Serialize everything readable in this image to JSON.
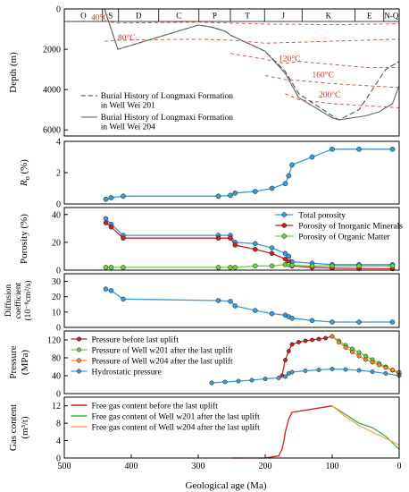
{
  "figure": {
    "x_axis_label": "Geological age (Ma)",
    "x_ticks": [
      500,
      400,
      300,
      200,
      100,
      0
    ],
    "x_range": [
      500,
      0
    ]
  },
  "chart_data": [
    {
      "type": "line",
      "id": "burial",
      "ylabel": "Depth (m)",
      "y_ticks": [
        0,
        2000,
        4000,
        6000
      ],
      "ylim": [
        6300,
        0
      ],
      "periods": [
        {
          "label": "O",
          "start": 500,
          "end": 443
        },
        {
          "label": "S",
          "start": 443,
          "end": 419
        },
        {
          "label": "D",
          "start": 419,
          "end": 359
        },
        {
          "label": "C",
          "start": 359,
          "end": 299
        },
        {
          "label": "P",
          "start": 299,
          "end": 252
        },
        {
          "label": "T",
          "start": 252,
          "end": 201
        },
        {
          "label": "J",
          "start": 201,
          "end": 145
        },
        {
          "label": "K",
          "start": 145,
          "end": 66
        },
        {
          "label": "E",
          "start": 66,
          "end": 23
        },
        {
          "label": "N-Q",
          "start": 23,
          "end": 0
        }
      ],
      "isotherms": [
        {
          "label": "40°C",
          "label_x": 460,
          "label_y": 550,
          "x": [
            440,
            420,
            300,
            252,
            200,
            100,
            50,
            0
          ],
          "y": [
            600,
            700,
            650,
            700,
            750,
            780,
            760,
            740
          ]
        },
        {
          "label": "80°C",
          "label_x": 420,
          "label_y": 1550,
          "x": [
            440,
            420,
            300,
            252,
            200,
            100,
            50,
            0
          ],
          "y": [
            1600,
            1550,
            1500,
            1550,
            1700,
            1600,
            1550,
            1500
          ]
        },
        {
          "label": "120°C",
          "label_x": 180,
          "label_y": 2600,
          "x": [
            252,
            200,
            170,
            150,
            100,
            50,
            0
          ],
          "y": [
            2200,
            2500,
            2700,
            2600,
            2750,
            2900,
            2900
          ]
        },
        {
          "label": "160°C",
          "label_x": 130,
          "label_y": 3400,
          "x": [
            200,
            170,
            150,
            100,
            50,
            0
          ],
          "y": [
            3300,
            3500,
            3550,
            3700,
            3800,
            3900
          ]
        },
        {
          "label": "200°C",
          "label_x": 120,
          "label_y": 4400,
          "x": [
            170,
            150,
            100,
            50,
            0
          ],
          "y": [
            4200,
            4500,
            4700,
            4800,
            4900
          ]
        }
      ],
      "series": [
        {
          "name": "Burial History of Longmaxi Formation in Well Wei 201",
          "style": "dashed",
          "color": "#555555",
          "x": [
            440,
            420,
            300,
            280,
            260,
            252,
            200,
            170,
            150,
            100,
            90,
            60,
            40,
            20,
            0
          ],
          "y": [
            0,
            2000,
            800,
            900,
            1100,
            1300,
            2100,
            3100,
            4200,
            5300,
            5500,
            5000,
            4000,
            3000,
            2600
          ]
        },
        {
          "name": "Burial History of Longmaxi Formation in Well Wei 204",
          "style": "solid",
          "color": "#666666",
          "x": [
            440,
            420,
            300,
            280,
            260,
            252,
            200,
            170,
            150,
            100,
            90,
            50,
            30,
            10,
            0
          ],
          "y": [
            0,
            2000,
            800,
            900,
            1100,
            1300,
            2100,
            3200,
            4400,
            5400,
            5500,
            5300,
            5100,
            4700,
            3800
          ]
        }
      ]
    },
    {
      "type": "line",
      "id": "ro",
      "ylabel": "Ro (%)",
      "ylabel_main": "R",
      "ylabel_sub": "o",
      "ylabel_unit": "(%)",
      "y_ticks": [
        0,
        2,
        4
      ],
      "ylim": [
        0,
        4
      ],
      "series": [
        {
          "name": "Ro",
          "color": "#3a9ad9",
          "x": [
            438,
            430,
            412,
            270,
            252,
            245,
            215,
            190,
            170,
            165,
            160,
            130,
            100,
            60,
            10
          ],
          "y": [
            0.3,
            0.4,
            0.5,
            0.5,
            0.55,
            0.7,
            0.8,
            1.0,
            1.3,
            1.8,
            2.5,
            3.0,
            3.5,
            3.5,
            3.5
          ]
        }
      ]
    },
    {
      "type": "line",
      "id": "porosity",
      "ylabel": "Porosity (%)",
      "y_ticks": [
        0,
        20,
        40
      ],
      "ylim": [
        0,
        45
      ],
      "legend": "top-right",
      "series": [
        {
          "name": "Total porosity",
          "color": "#3a9ad9",
          "x": [
            438,
            430,
            412,
            270,
            252,
            245,
            215,
            190,
            170,
            165,
            160,
            130,
            100,
            60,
            10
          ],
          "y": [
            37,
            33,
            25,
            25,
            25,
            20,
            19,
            16,
            12,
            10,
            6,
            5,
            4,
            4,
            4
          ]
        },
        {
          "name": "Porosity of Inorganic Minerals",
          "color": "#cc1f1f",
          "x": [
            438,
            430,
            412,
            270,
            252,
            245,
            215,
            190,
            170,
            165,
            160,
            130,
            100,
            60,
            10
          ],
          "y": [
            34,
            31,
            23,
            23,
            23,
            18,
            15,
            12,
            8,
            6,
            3,
            2,
            1.5,
            1.2,
            1
          ]
        },
        {
          "name": "Porosity of Organic Matter",
          "color": "#6ecf3a",
          "x": [
            438,
            430,
            412,
            270,
            252,
            245,
            215,
            190,
            170,
            165,
            160,
            130,
            100,
            60,
            10
          ],
          "y": [
            2,
            2,
            2,
            2,
            2,
            2,
            3,
            3,
            4,
            4,
            3.5,
            3,
            3,
            3,
            3
          ]
        }
      ]
    },
    {
      "type": "line",
      "id": "diffusion",
      "ylabel": "Diffusion coefficient (10⁻⁸cm²/s)",
      "ylabel_line1": "Diffusion",
      "ylabel_line2": "coefficient",
      "ylabel_line3": "(10⁻⁸cm²/s)",
      "y_ticks": [
        0,
        10,
        20,
        30
      ],
      "ylim": [
        0,
        35
      ],
      "series": [
        {
          "name": "Diffusion coefficient",
          "color": "#3a9ad9",
          "x": [
            438,
            430,
            412,
            270,
            252,
            245,
            215,
            190,
            170,
            165,
            160,
            130,
            100,
            60,
            10
          ],
          "y": [
            25,
            24,
            18.5,
            17.5,
            17,
            14,
            11,
            9,
            8,
            7,
            6,
            4.5,
            3.5,
            3.5,
            3.5
          ]
        }
      ]
    },
    {
      "type": "line",
      "id": "pressure",
      "ylabel": "Pressure (MPa)",
      "ylabel_line1": "Pressure",
      "ylabel_line2": "(MPa)",
      "y_ticks": [
        0,
        40,
        80,
        120
      ],
      "ylim": [
        0,
        140
      ],
      "legend": "top-left",
      "series": [
        {
          "name": "Pressure before last uplift",
          "color": "#cc1f1f",
          "x": [
            175,
            170,
            165,
            160,
            150,
            140,
            130,
            120,
            110,
            100
          ],
          "y": [
            40,
            75,
            95,
            110,
            115,
            118,
            120,
            122,
            124,
            128
          ]
        },
        {
          "name": "Pressure of Well w201 after the last uplift",
          "color": "#6ecf3a",
          "x": [
            100,
            90,
            80,
            70,
            60,
            50,
            40,
            30,
            20,
            10,
            0
          ],
          "y": [
            128,
            118,
            108,
            100,
            92,
            84,
            76,
            68,
            60,
            52,
            44
          ]
        },
        {
          "name": "Pressure of Well w204 after the last uplift",
          "color": "#f08a2c",
          "x": [
            100,
            90,
            80,
            70,
            60,
            50,
            40,
            30,
            20,
            10,
            0
          ],
          "y": [
            128,
            115,
            103,
            93,
            84,
            76,
            70,
            64,
            58,
            53,
            48
          ]
        },
        {
          "name": "Hydrostatic pressure",
          "color": "#3a9ad9",
          "x": [
            280,
            260,
            240,
            220,
            200,
            180,
            170,
            165,
            160,
            140,
            120,
            100,
            80,
            60,
            40,
            20,
            0
          ],
          "y": [
            24,
            26,
            28,
            30,
            33,
            35,
            38,
            45,
            48,
            51,
            53,
            55,
            54,
            52,
            49,
            45,
            40
          ]
        }
      ]
    },
    {
      "type": "line",
      "id": "gas",
      "ylabel": "Gas content (m³/t)",
      "ylabel_line1": "Gas content",
      "ylabel_line2": "(m³/t)",
      "y_ticks": [
        0,
        4,
        8,
        12
      ],
      "ylim": [
        0,
        14
      ],
      "legend": "top-left",
      "series": [
        {
          "name": "Free gas content before the last uplift",
          "color": "#cc1f1f",
          "x": [
            250,
            200,
            180,
            175,
            172,
            170,
            165,
            160,
            100
          ],
          "y": [
            0,
            0,
            0.5,
            2,
            4,
            6,
            9,
            10.5,
            12
          ]
        },
        {
          "name": "Free gas content of Well w201 after the last uplift",
          "color": "#3cb043",
          "x": [
            100,
            80,
            60,
            40,
            20,
            0
          ],
          "y": [
            12,
            10,
            8,
            7,
            5,
            2
          ]
        },
        {
          "name": "Free gas content of Well w204 after the last uplift",
          "color": "#f2a65a",
          "x": [
            100,
            80,
            60,
            40,
            20,
            0
          ],
          "y": [
            12,
            9.5,
            7.5,
            6,
            4.5,
            3
          ]
        }
      ]
    }
  ]
}
